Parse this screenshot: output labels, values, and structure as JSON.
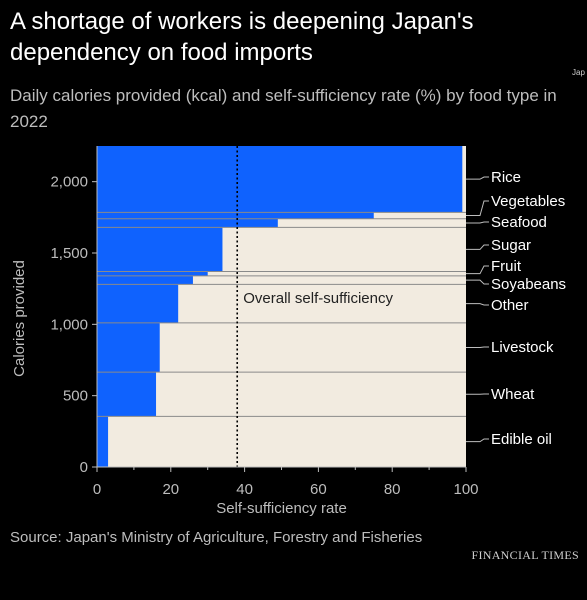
{
  "header": {
    "title": "A shortage of workers is deepening Japan's dependency on food imports",
    "subtitle": "Daily calories provided (kcal) and self-sufficiency rate (%) by food type in 2022",
    "cut_note": "Jap its"
  },
  "footer": {
    "source": "Source: Japan's Ministry of Agriculture, Forestry and Fisheries",
    "brand": "FINANCIAL TIMES"
  },
  "chart_data": {
    "type": "area",
    "xlabel": "Self-sufficiency rate",
    "ylabel": "Calories provided",
    "xlim": [
      0,
      100
    ],
    "ylim": [
      0,
      2250
    ],
    "x_ticks": [
      0,
      20,
      40,
      60,
      80,
      100
    ],
    "y_ticks": [
      0,
      500,
      1000,
      1500,
      2000
    ],
    "x_tick_labels": [
      "0",
      "20",
      "40",
      "60",
      "80",
      "100"
    ],
    "y_tick_labels": [
      "0",
      "500",
      "1,000",
      "1,500",
      "2,000"
    ],
    "categories": [
      {
        "name": "Edible oil",
        "calories": 355,
        "self_sufficiency": 3
      },
      {
        "name": "Wheat",
        "calories": 310,
        "self_sufficiency": 16
      },
      {
        "name": "Livestock",
        "calories": 345,
        "self_sufficiency": 17
      },
      {
        "name": "Other",
        "calories": 270,
        "self_sufficiency": 22
      },
      {
        "name": "Soyabeans",
        "calories": 60,
        "self_sufficiency": 26
      },
      {
        "name": "Fruit",
        "calories": 30,
        "self_sufficiency": 30
      },
      {
        "name": "Sugar",
        "calories": 310,
        "self_sufficiency": 34
      },
      {
        "name": "Seafood",
        "calories": 60,
        "self_sufficiency": 49
      },
      {
        "name": "Vegetables",
        "calories": 45,
        "self_sufficiency": 75
      },
      {
        "name": "Rice",
        "calories": 465,
        "self_sufficiency": 99
      }
    ],
    "reference_line": {
      "label": "Overall self-sufficiency",
      "x": 38
    },
    "colors": {
      "domestic": "#f2ebe0",
      "imports": "#0f62fe",
      "axis": "#bdbdbd",
      "divider": "#8a8a8a",
      "reference": "#000000"
    }
  }
}
